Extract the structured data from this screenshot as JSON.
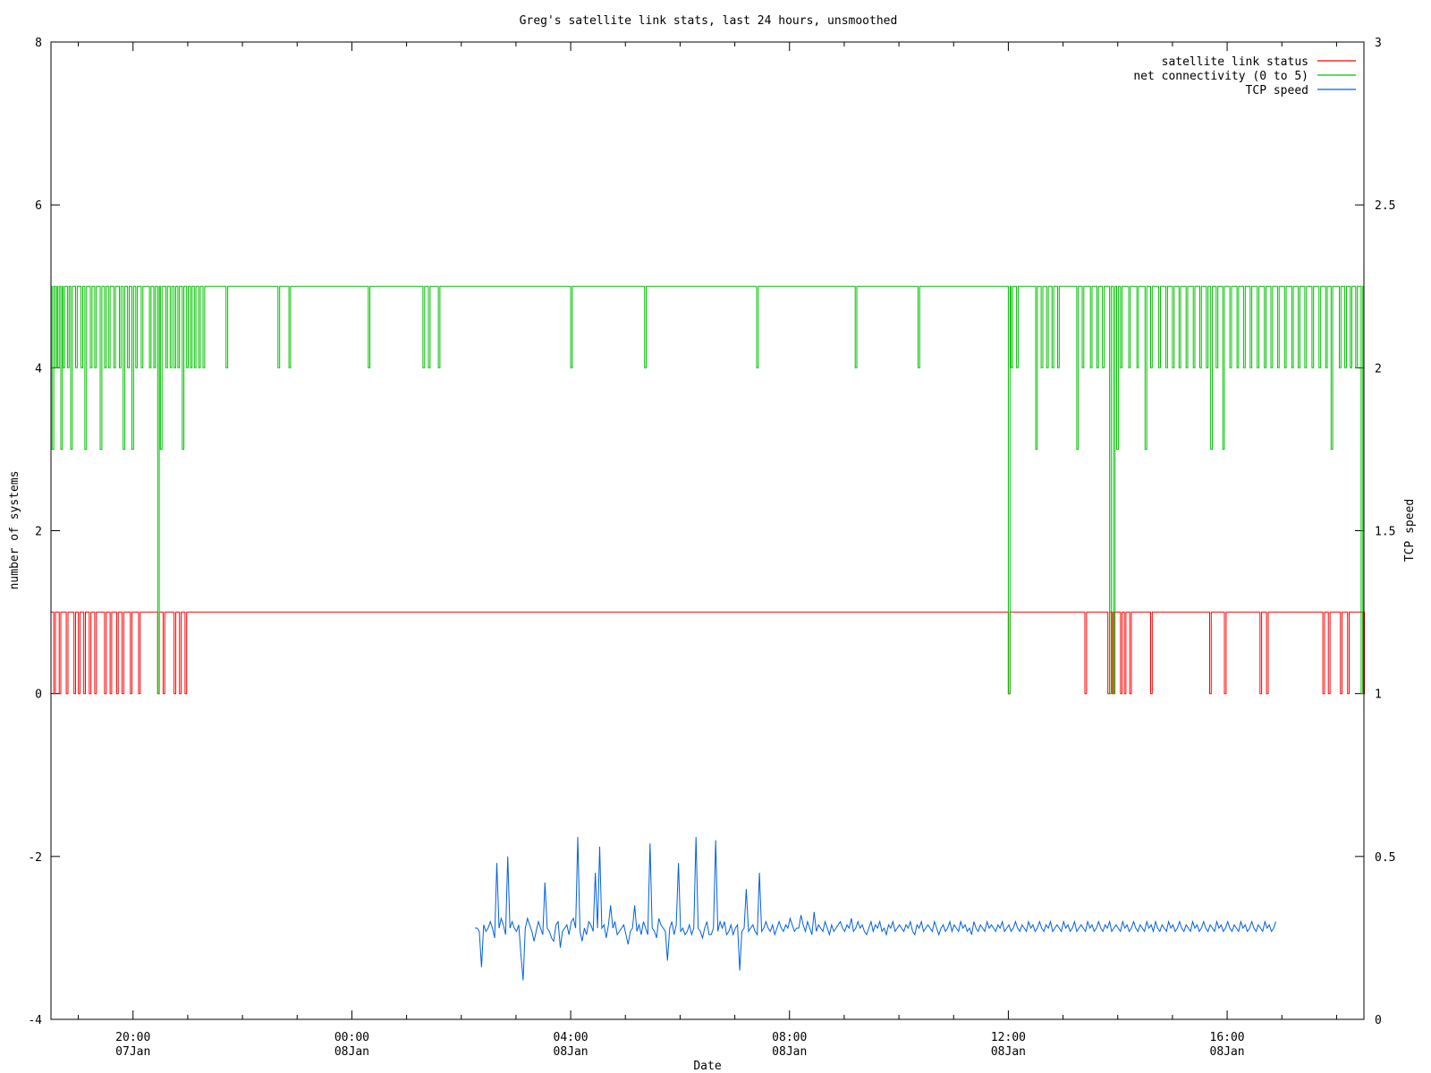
{
  "chart_data": {
    "type": "line",
    "title": "Greg's satellite link stats, last 24 hours, unsmoothed",
    "xlabel": "Date",
    "ylabel": "number of systems",
    "y2label": "TCP speed",
    "xlim_hours": [
      18.5,
      42.5
    ],
    "ylim": [
      -4,
      8
    ],
    "y2lim": [
      0,
      3
    ],
    "y_ticks": [
      "-4",
      "-2",
      "0",
      "2",
      "4",
      "6",
      "8"
    ],
    "y2_ticks": [
      "0",
      "0.5",
      "1",
      "1.5",
      "2",
      "2.5",
      "3"
    ],
    "x_ticks": [
      {
        "hour": 20,
        "time": "20:00",
        "date": "07Jan"
      },
      {
        "hour": 24,
        "time": "00:00",
        "date": "08Jan"
      },
      {
        "hour": 28,
        "time": "04:00",
        "date": "08Jan"
      },
      {
        "hour": 32,
        "time": "08:00",
        "date": "08Jan"
      },
      {
        "hour": 36,
        "time": "12:00",
        "date": "08Jan"
      },
      {
        "hour": 40,
        "time": "16:00",
        "date": "08Jan"
      }
    ],
    "legend_position": "top-right",
    "series": [
      {
        "name": "satellite link status",
        "color": "#ff0000",
        "axis": "y",
        "baseline": 1,
        "dips": [
          {
            "h": 18.55,
            "v": 0
          },
          {
            "h": 18.65,
            "v": 0
          },
          {
            "h": 18.78,
            "v": 0
          },
          {
            "h": 18.92,
            "v": 0
          },
          {
            "h": 19.0,
            "v": 0
          },
          {
            "h": 19.1,
            "v": 0
          },
          {
            "h": 19.2,
            "v": 0
          },
          {
            "h": 19.3,
            "v": 0
          },
          {
            "h": 19.48,
            "v": 0
          },
          {
            "h": 19.58,
            "v": 0
          },
          {
            "h": 19.7,
            "v": 0
          },
          {
            "h": 19.8,
            "v": 0
          },
          {
            "h": 19.95,
            "v": 0
          },
          {
            "h": 20.1,
            "v": 0
          },
          {
            "h": 20.45,
            "v": 0
          },
          {
            "h": 20.55,
            "v": 0
          },
          {
            "h": 20.75,
            "v": 0
          },
          {
            "h": 20.85,
            "v": 0
          },
          {
            "h": 20.95,
            "v": 0
          },
          {
            "h": 36.0,
            "v": 0
          },
          {
            "h": 37.4,
            "v": 0
          },
          {
            "h": 37.82,
            "v": 0
          },
          {
            "h": 37.9,
            "v": 0
          },
          {
            "h": 38.05,
            "v": 0
          },
          {
            "h": 38.12,
            "v": 0
          },
          {
            "h": 38.22,
            "v": 0
          },
          {
            "h": 38.6,
            "v": 0
          },
          {
            "h": 39.68,
            "v": 0
          },
          {
            "h": 39.95,
            "v": 0
          },
          {
            "h": 40.6,
            "v": 0
          },
          {
            "h": 40.72,
            "v": 0
          },
          {
            "h": 41.75,
            "v": 0
          },
          {
            "h": 41.85,
            "v": 0
          },
          {
            "h": 42.07,
            "v": 0
          },
          {
            "h": 42.2,
            "v": 0
          },
          {
            "h": 42.48,
            "v": 0
          }
        ]
      },
      {
        "name": "net connectivity (0 to 5)",
        "color": "#00c000",
        "axis": "y",
        "baseline": 5,
        "dips": [
          {
            "h": 18.52,
            "v": 3
          },
          {
            "h": 18.58,
            "v": 4
          },
          {
            "h": 18.62,
            "v": 4
          },
          {
            "h": 18.68,
            "v": 3
          },
          {
            "h": 18.72,
            "v": 4
          },
          {
            "h": 18.8,
            "v": 4
          },
          {
            "h": 18.86,
            "v": 3
          },
          {
            "h": 18.95,
            "v": 4
          },
          {
            "h": 19.05,
            "v": 4
          },
          {
            "h": 19.12,
            "v": 3
          },
          {
            "h": 19.22,
            "v": 4
          },
          {
            "h": 19.3,
            "v": 4
          },
          {
            "h": 19.4,
            "v": 3
          },
          {
            "h": 19.48,
            "v": 4
          },
          {
            "h": 19.55,
            "v": 4
          },
          {
            "h": 19.65,
            "v": 4
          },
          {
            "h": 19.75,
            "v": 4
          },
          {
            "h": 19.82,
            "v": 3
          },
          {
            "h": 19.9,
            "v": 4
          },
          {
            "h": 19.98,
            "v": 3
          },
          {
            "h": 20.05,
            "v": 4
          },
          {
            "h": 20.15,
            "v": 4
          },
          {
            "h": 20.3,
            "v": 4
          },
          {
            "h": 20.38,
            "v": 4
          },
          {
            "h": 20.45,
            "v": 0
          },
          {
            "h": 20.5,
            "v": 3
          },
          {
            "h": 20.6,
            "v": 4
          },
          {
            "h": 20.68,
            "v": 4
          },
          {
            "h": 20.75,
            "v": 4
          },
          {
            "h": 20.82,
            "v": 4
          },
          {
            "h": 20.9,
            "v": 3
          },
          {
            "h": 20.98,
            "v": 4
          },
          {
            "h": 21.05,
            "v": 4
          },
          {
            "h": 21.12,
            "v": 4
          },
          {
            "h": 21.2,
            "v": 4
          },
          {
            "h": 21.28,
            "v": 4
          },
          {
            "h": 21.7,
            "v": 4
          },
          {
            "h": 22.65,
            "v": 4
          },
          {
            "h": 22.85,
            "v": 4
          },
          {
            "h": 24.3,
            "v": 4
          },
          {
            "h": 25.3,
            "v": 4
          },
          {
            "h": 25.4,
            "v": 4
          },
          {
            "h": 25.58,
            "v": 4
          },
          {
            "h": 28.0,
            "v": 4
          },
          {
            "h": 29.35,
            "v": 4
          },
          {
            "h": 31.4,
            "v": 4
          },
          {
            "h": 33.2,
            "v": 4
          },
          {
            "h": 34.35,
            "v": 4
          },
          {
            "h": 36.0,
            "v": 0
          },
          {
            "h": 36.05,
            "v": 4
          },
          {
            "h": 36.15,
            "v": 4
          },
          {
            "h": 36.5,
            "v": 3
          },
          {
            "h": 36.6,
            "v": 4
          },
          {
            "h": 36.7,
            "v": 4
          },
          {
            "h": 36.8,
            "v": 4
          },
          {
            "h": 36.9,
            "v": 4
          },
          {
            "h": 37.25,
            "v": 3
          },
          {
            "h": 37.35,
            "v": 4
          },
          {
            "h": 37.5,
            "v": 4
          },
          {
            "h": 37.62,
            "v": 4
          },
          {
            "h": 37.72,
            "v": 4
          },
          {
            "h": 37.85,
            "v": 0
          },
          {
            "h": 37.92,
            "v": 0
          },
          {
            "h": 37.98,
            "v": 3
          },
          {
            "h": 38.05,
            "v": 4
          },
          {
            "h": 38.2,
            "v": 4
          },
          {
            "h": 38.35,
            "v": 4
          },
          {
            "h": 38.5,
            "v": 3
          },
          {
            "h": 38.6,
            "v": 4
          },
          {
            "h": 38.75,
            "v": 4
          },
          {
            "h": 38.88,
            "v": 4
          },
          {
            "h": 39.0,
            "v": 4
          },
          {
            "h": 39.12,
            "v": 4
          },
          {
            "h": 39.25,
            "v": 4
          },
          {
            "h": 39.38,
            "v": 4
          },
          {
            "h": 39.5,
            "v": 4
          },
          {
            "h": 39.62,
            "v": 4
          },
          {
            "h": 39.7,
            "v": 3
          },
          {
            "h": 39.8,
            "v": 4
          },
          {
            "h": 39.92,
            "v": 3
          },
          {
            "h": 40.05,
            "v": 4
          },
          {
            "h": 40.18,
            "v": 4
          },
          {
            "h": 40.3,
            "v": 4
          },
          {
            "h": 40.42,
            "v": 4
          },
          {
            "h": 40.55,
            "v": 4
          },
          {
            "h": 40.68,
            "v": 4
          },
          {
            "h": 40.8,
            "v": 4
          },
          {
            "h": 40.92,
            "v": 4
          },
          {
            "h": 41.05,
            "v": 4
          },
          {
            "h": 41.18,
            "v": 4
          },
          {
            "h": 41.3,
            "v": 4
          },
          {
            "h": 41.42,
            "v": 4
          },
          {
            "h": 41.55,
            "v": 4
          },
          {
            "h": 41.68,
            "v": 4
          },
          {
            "h": 41.8,
            "v": 4
          },
          {
            "h": 41.9,
            "v": 3
          },
          {
            "h": 42.05,
            "v": 4
          },
          {
            "h": 42.15,
            "v": 4
          },
          {
            "h": 42.25,
            "v": 4
          },
          {
            "h": 42.35,
            "v": 4
          },
          {
            "h": 42.45,
            "v": 0
          }
        ]
      },
      {
        "name": "TCP speed",
        "color": "#0060e0",
        "axis": "y2",
        "start_hour": 26.25,
        "step_hours": 0.04,
        "values": [
          0.28,
          0.28,
          0.27,
          0.16,
          0.29,
          0.27,
          0.28,
          0.3,
          0.28,
          0.25,
          0.48,
          0.28,
          0.31,
          0.29,
          0.26,
          0.5,
          0.28,
          0.3,
          0.28,
          0.27,
          0.29,
          0.2,
          0.12,
          0.28,
          0.31,
          0.29,
          0.27,
          0.24,
          0.27,
          0.3,
          0.28,
          0.26,
          0.42,
          0.28,
          0.27,
          0.25,
          0.24,
          0.29,
          0.3,
          0.22,
          0.27,
          0.28,
          0.29,
          0.26,
          0.3,
          0.31,
          0.28,
          0.56,
          0.27,
          0.24,
          0.28,
          0.26,
          0.3,
          0.29,
          0.27,
          0.45,
          0.28,
          0.53,
          0.28,
          0.29,
          0.25,
          0.29,
          0.35,
          0.28,
          0.3,
          0.26,
          0.27,
          0.28,
          0.29,
          0.26,
          0.23,
          0.27,
          0.28,
          0.35,
          0.27,
          0.29,
          0.26,
          0.3,
          0.28,
          0.26,
          0.54,
          0.28,
          0.27,
          0.25,
          0.31,
          0.29,
          0.28,
          0.27,
          0.18,
          0.28,
          0.3,
          0.26,
          0.29,
          0.48,
          0.27,
          0.28,
          0.26,
          0.27,
          0.29,
          0.26,
          0.28,
          0.56,
          0.28,
          0.27,
          0.25,
          0.28,
          0.3,
          0.26,
          0.26,
          0.28,
          0.55,
          0.27,
          0.3,
          0.28,
          0.3,
          0.26,
          0.27,
          0.29,
          0.26,
          0.28,
          0.29,
          0.15,
          0.27,
          0.28,
          0.4,
          0.27,
          0.28,
          0.29,
          0.27,
          0.26,
          0.45,
          0.27,
          0.28,
          0.3,
          0.28,
          0.27,
          0.29,
          0.26,
          0.28,
          0.3,
          0.28,
          0.27,
          0.29,
          0.28,
          0.31,
          0.29,
          0.27,
          0.28,
          0.28,
          0.32,
          0.29,
          0.27,
          0.3,
          0.28,
          0.26,
          0.33,
          0.27,
          0.29,
          0.28,
          0.27,
          0.3,
          0.28,
          0.26,
          0.29,
          0.27,
          0.28,
          0.29,
          0.3,
          0.28,
          0.27,
          0.29,
          0.28,
          0.31,
          0.27,
          0.28,
          0.3,
          0.28,
          0.29,
          0.27,
          0.26,
          0.28,
          0.3,
          0.27,
          0.29,
          0.28,
          0.3,
          0.27,
          0.28,
          0.26,
          0.29,
          0.28,
          0.3,
          0.27,
          0.28,
          0.29,
          0.28,
          0.27,
          0.29,
          0.28,
          0.3,
          0.27,
          0.26,
          0.29,
          0.28,
          0.3,
          0.27,
          0.28,
          0.29,
          0.28,
          0.27,
          0.3,
          0.28,
          0.26,
          0.28,
          0.29,
          0.27,
          0.28,
          0.3,
          0.27,
          0.29,
          0.28,
          0.27,
          0.3,
          0.28,
          0.29,
          0.27,
          0.28,
          0.26,
          0.3,
          0.28,
          0.27,
          0.29,
          0.28,
          0.27,
          0.3,
          0.28,
          0.29,
          0.28,
          0.27,
          0.29,
          0.28,
          0.3,
          0.27,
          0.28,
          0.29,
          0.27,
          0.28,
          0.3,
          0.28,
          0.27,
          0.29,
          0.28,
          0.27,
          0.3,
          0.28,
          0.29,
          0.27,
          0.28,
          0.3,
          0.28,
          0.27,
          0.29,
          0.28,
          0.3,
          0.27,
          0.28,
          0.29,
          0.28,
          0.27,
          0.3,
          0.28,
          0.29,
          0.27,
          0.28,
          0.3,
          0.27,
          0.28,
          0.29,
          0.28,
          0.27,
          0.3,
          0.28,
          0.29,
          0.27,
          0.28,
          0.3,
          0.28,
          0.27,
          0.29,
          0.28,
          0.3,
          0.27,
          0.28,
          0.29,
          0.28,
          0.27,
          0.3,
          0.28,
          0.29,
          0.27,
          0.28,
          0.3,
          0.28,
          0.27,
          0.29,
          0.28,
          0.27,
          0.3,
          0.28,
          0.29,
          0.27,
          0.3,
          0.28,
          0.27,
          0.29,
          0.28,
          0.27,
          0.3,
          0.28,
          0.29,
          0.27,
          0.28,
          0.3,
          0.28,
          0.27,
          0.29,
          0.28,
          0.27,
          0.3,
          0.28,
          0.29,
          0.27,
          0.28,
          0.3,
          0.28,
          0.27,
          0.29,
          0.28,
          0.27,
          0.3,
          0.28,
          0.29,
          0.27,
          0.28,
          0.3,
          0.28,
          0.27,
          0.29,
          0.28,
          0.27,
          0.3,
          0.28,
          0.29,
          0.27,
          0.28,
          0.3,
          0.28,
          0.27,
          0.29,
          0.28,
          0.27,
          0.3,
          0.28,
          0.29,
          0.27,
          0.28,
          0.3
        ]
      }
    ]
  }
}
